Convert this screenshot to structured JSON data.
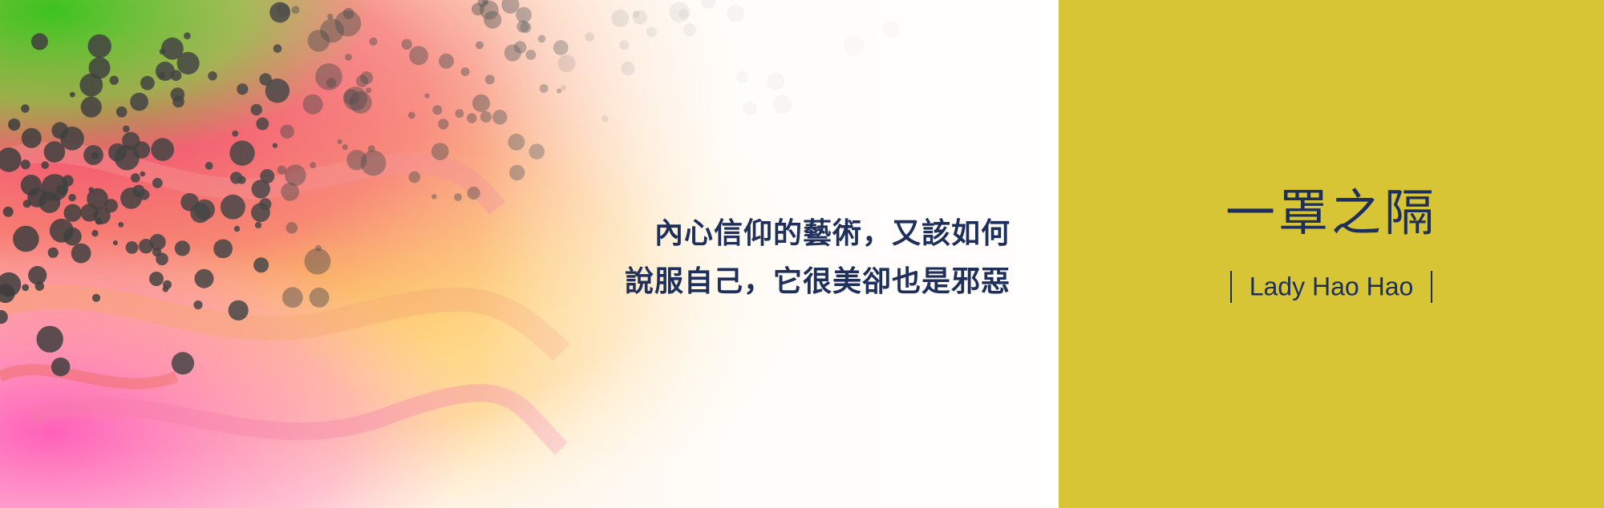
{
  "quote": {
    "line1": "內心信仰的藝術，又該如何",
    "line2": "說服自己，它很美卻也是邪惡"
  },
  "side": {
    "title": "一罩之隔",
    "author": "Lady Hao Hao"
  },
  "colors": {
    "side_background": "#d8c535",
    "text_navy": "#1d2f5a"
  }
}
